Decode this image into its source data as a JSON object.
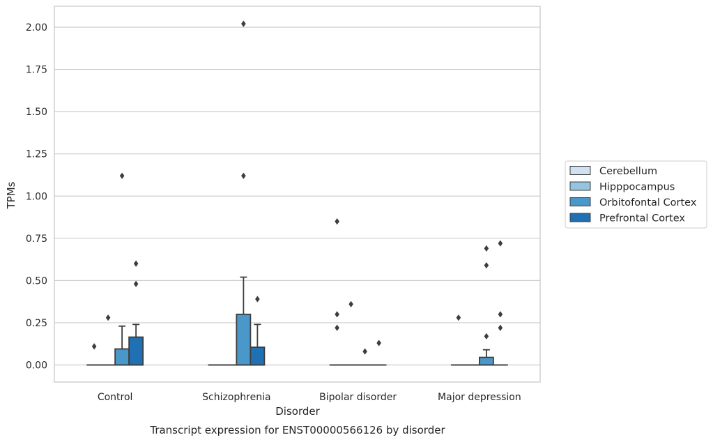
{
  "chart_data": {
    "type": "boxplot",
    "caption": "Transcript expression for ENST00000566126 by disorder",
    "xlabel": "Disorder",
    "ylabel": "TPMs",
    "ylim": [
      -0.1,
      2.12
    ],
    "yticks": [
      0.0,
      0.25,
      0.5,
      0.75,
      1.0,
      1.25,
      1.5,
      1.75,
      2.0
    ],
    "ytick_labels": [
      "0.00",
      "0.25",
      "0.50",
      "0.75",
      "1.00",
      "1.25",
      "1.50",
      "1.75",
      "2.00"
    ],
    "grid": true,
    "legend_position": "right",
    "categories": [
      "Control",
      "Schizophrenia",
      "Bipolar disorder",
      "Major depression"
    ],
    "series": [
      {
        "name": "Cerebellum",
        "color": "#d0e1f2",
        "boxes": [
          {
            "q1": 0,
            "median": 0,
            "q3": 0,
            "whisker_low": 0,
            "whisker_high": 0,
            "outliers": [
              0.11
            ]
          },
          {
            "q1": 0,
            "median": 0,
            "q3": 0,
            "whisker_low": 0,
            "whisker_high": 0,
            "outliers": []
          },
          {
            "q1": 0,
            "median": 0,
            "q3": 0,
            "whisker_low": 0,
            "whisker_high": 0,
            "outliers": [
              0.85,
              0.3,
              0.22
            ]
          },
          {
            "q1": 0,
            "median": 0,
            "q3": 0,
            "whisker_low": 0,
            "whisker_high": 0,
            "outliers": [
              0.28
            ]
          }
        ]
      },
      {
        "name": "Hipppocampus",
        "color": "#94c4df",
        "boxes": [
          {
            "q1": 0,
            "median": 0,
            "q3": 0,
            "whisker_low": 0,
            "whisker_high": 0,
            "outliers": [
              0.28
            ]
          },
          {
            "q1": 0,
            "median": 0,
            "q3": 0,
            "whisker_low": 0,
            "whisker_high": 0,
            "outliers": []
          },
          {
            "q1": 0,
            "median": 0,
            "q3": 0,
            "whisker_low": 0,
            "whisker_high": 0,
            "outliers": [
              0.36
            ]
          },
          {
            "q1": 0,
            "median": 0,
            "q3": 0,
            "whisker_low": 0,
            "whisker_high": 0,
            "outliers": []
          }
        ]
      },
      {
        "name": "Orbitofontal Cortex",
        "color": "#4a98c9",
        "boxes": [
          {
            "q1": 0,
            "median": 0,
            "q3": 0.095,
            "whisker_low": 0,
            "whisker_high": 0.23,
            "outliers": [
              1.12
            ]
          },
          {
            "q1": 0,
            "median": 0,
            "q3": 0.3,
            "whisker_low": 0,
            "whisker_high": 0.52,
            "outliers": [
              2.02,
              1.12
            ]
          },
          {
            "q1": 0,
            "median": 0,
            "q3": 0,
            "whisker_low": 0,
            "whisker_high": 0,
            "outliers": [
              0.08
            ]
          },
          {
            "q1": 0,
            "median": 0,
            "q3": 0.045,
            "whisker_low": 0,
            "whisker_high": 0.09,
            "outliers": [
              0.69,
              0.59,
              0.17
            ]
          }
        ]
      },
      {
        "name": "Prefrontal Cortex",
        "color": "#2070b4",
        "boxes": [
          {
            "q1": 0,
            "median": 0,
            "q3": 0.165,
            "whisker_low": 0,
            "whisker_high": 0.24,
            "outliers": [
              0.6,
              0.48
            ]
          },
          {
            "q1": 0,
            "median": 0,
            "q3": 0.105,
            "whisker_low": 0,
            "whisker_high": 0.24,
            "outliers": [
              0.39
            ]
          },
          {
            "q1": 0,
            "median": 0,
            "q3": 0,
            "whisker_low": 0,
            "whisker_high": 0,
            "outliers": [
              0.13
            ]
          },
          {
            "q1": 0,
            "median": 0,
            "q3": 0,
            "whisker_low": 0,
            "whisker_high": 0,
            "outliers": [
              0.72,
              0.3,
              0.22
            ]
          }
        ]
      }
    ]
  }
}
